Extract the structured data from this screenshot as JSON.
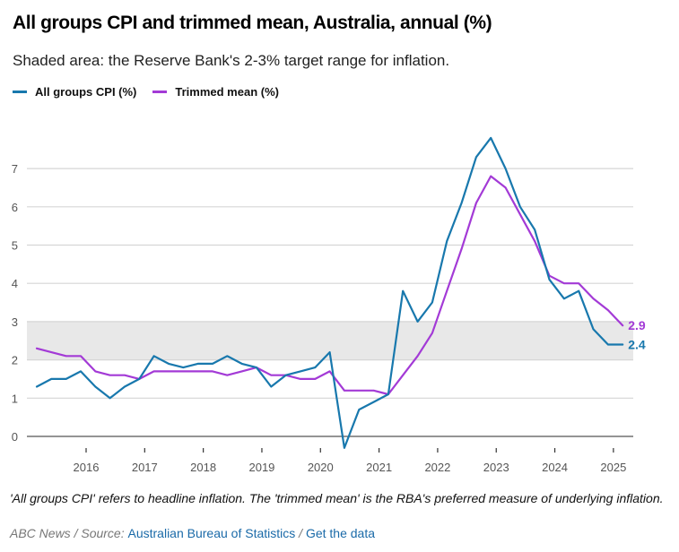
{
  "title": "All groups CPI and trimmed mean, Australia, annual (%)",
  "subtitle": "Shaded area: the Reserve Bank's 2-3% target range for inflation.",
  "legend": [
    {
      "label": "All groups CPI (%)",
      "color": "#1878ad"
    },
    {
      "label": "Trimmed mean (%)",
      "color": "#a33ad6"
    }
  ],
  "note": "'All groups CPI' refers to headline inflation. The 'trimmed mean' is the RBA's preferred measure of underlying inflation.",
  "source": {
    "prefix": "ABC News / Source: ",
    "link1": "Australian Bureau of Statistics",
    "separator": " / ",
    "link2": "Get the data"
  },
  "chart_data": {
    "type": "line",
    "title": "All groups CPI and trimmed mean, Australia, annual (%)",
    "xlabel": "",
    "ylabel": "",
    "ylim": [
      0,
      7.8
    ],
    "yticks": [
      0,
      1,
      2,
      3,
      4,
      5,
      6,
      7
    ],
    "xticks": [
      "2016",
      "2017",
      "2018",
      "2019",
      "2020",
      "2021",
      "2022",
      "2023",
      "2024",
      "2025"
    ],
    "x_start": "Jun 2015",
    "x_end": "Jun 2025",
    "x_frequency": "quarterly",
    "grid": true,
    "legend_position": "top-left",
    "shaded_band": {
      "from": 2,
      "to": 3,
      "label": "RBA 2-3% target range",
      "color": "#e8e8e8"
    },
    "series": [
      {
        "name": "All groups CPI (%)",
        "color": "#1878ad",
        "end_label": "2.4",
        "values": [
          1.3,
          1.5,
          1.5,
          1.7,
          1.3,
          1.0,
          1.3,
          1.5,
          2.1,
          1.9,
          1.8,
          1.9,
          1.9,
          2.1,
          1.9,
          1.8,
          1.3,
          1.6,
          1.7,
          1.8,
          2.2,
          -0.3,
          0.7,
          0.9,
          1.1,
          3.8,
          3.0,
          3.5,
          5.1,
          6.1,
          7.3,
          7.8,
          7.0,
          6.0,
          5.4,
          4.1,
          3.6,
          3.8,
          2.8,
          2.4,
          2.4
        ]
      },
      {
        "name": "Trimmed mean (%)",
        "color": "#a33ad6",
        "end_label": "2.9",
        "values": [
          2.3,
          2.2,
          2.1,
          2.1,
          1.7,
          1.6,
          1.6,
          1.5,
          1.7,
          1.7,
          1.7,
          1.7,
          1.7,
          1.6,
          1.7,
          1.8,
          1.6,
          1.6,
          1.5,
          1.5,
          1.7,
          1.2,
          1.2,
          1.2,
          1.1,
          1.6,
          2.1,
          2.7,
          3.8,
          4.9,
          6.1,
          6.8,
          6.5,
          5.8,
          5.1,
          4.2,
          4.0,
          4.0,
          3.6,
          3.3,
          2.9
        ]
      }
    ]
  }
}
